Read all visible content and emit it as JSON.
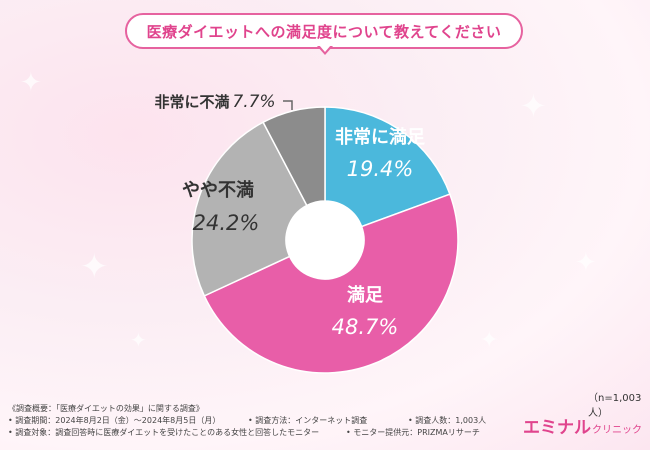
{
  "question": "医療ダイエットへの満足度について教えてください",
  "sample_size": "（n=1,003人）",
  "footnotes": {
    "header": "《調査概要：「医療ダイエットの効果」に関する調査》",
    "period": "• 調査期間：2024年8月2日（金）〜2024年8月5日（月）",
    "method": "• 調査方法：インターネット調査",
    "respondents": "• 調査人数：1,003人",
    "target": "• 調査対象：調査回答時に医療ダイエットを受けたことのある女性と回答したモニター",
    "provider": "• モニター提供元：PRIZMAリサーチ"
  },
  "logo": {
    "main": "エミナル",
    "sub": "クリニック"
  },
  "chart_data": {
    "type": "pie",
    "donut": true,
    "categories": [
      "非常に満足",
      "満足",
      "やや不満",
      "非常に不満"
    ],
    "values": [
      19.4,
      48.7,
      24.2,
      7.7
    ],
    "value_labels": [
      "19.4%",
      "48.7%",
      "24.2%",
      "7.7%"
    ],
    "colors": [
      "#4bb8dc",
      "#e85ea8",
      "#b3b3b3",
      "#8c8c8c"
    ],
    "label_colors": [
      "#ffffff",
      "#ffffff",
      "#333333",
      "#333333"
    ],
    "start": "12 o'clock, clockwise"
  }
}
